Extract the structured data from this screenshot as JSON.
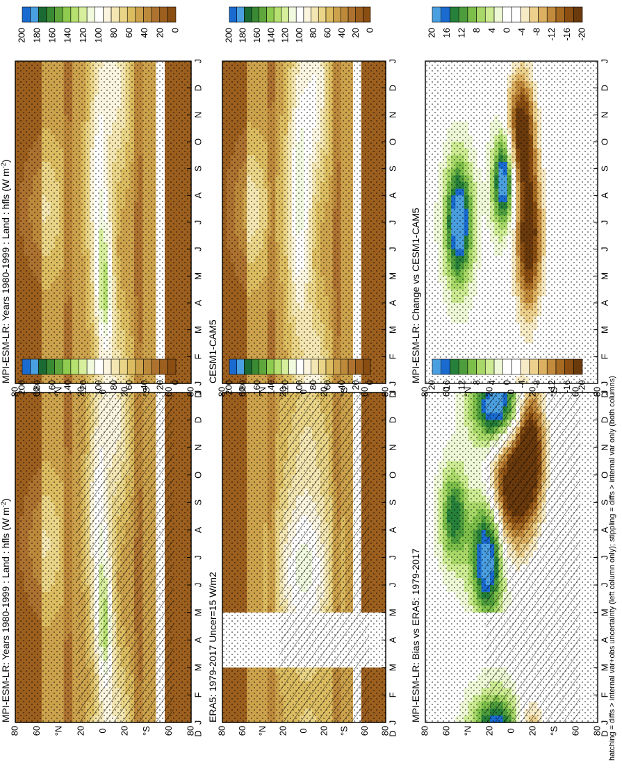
{
  "figure": {
    "footnote": "hatching = diffs > internal var+obs uncertainty (left column only); stippling = diffs > internal var only (both columns)"
  },
  "palettes": {
    "flux": [
      "#8a4e12",
      "#9c5f1e",
      "#ad7230",
      "#bd8a3c",
      "#cda24c",
      "#dcbc60",
      "#e9d487",
      "#f3e6b2",
      "#fbf5e0",
      "#ffffff",
      "#f1f9de",
      "#d7ef9c",
      "#b6e06f",
      "#8ecb4e",
      "#5fa73c",
      "#3a8a33",
      "#1b6a34",
      "#4a9fe0",
      "#1a6bd0"
    ],
    "diff": [
      "#6b3a0c",
      "#8a4e12",
      "#a66a22",
      "#c28a3c",
      "#dbb060",
      "#ecd08c",
      "#f7ebc6",
      "#ffffff",
      "#ffffff",
      "#eef8d6",
      "#cdeb92",
      "#a8d868",
      "#7dbf4a",
      "#4e9d3c",
      "#26803a",
      "#1a6bd0",
      "#4a9fe0"
    ]
  },
  "colorbars": {
    "flux": {
      "ticks": [
        "0",
        "20",
        "40",
        "60",
        "80",
        "100",
        "120",
        "140",
        "160",
        "180",
        "200"
      ]
    },
    "diff": {
      "ticks": [
        "-20",
        "-16",
        "-12",
        "-8",
        "-4",
        "0",
        "4",
        "8",
        "12",
        "16",
        "20"
      ]
    }
  },
  "axes": {
    "month_ticks": [
      "J",
      "F",
      "M",
      "A",
      "M",
      "J",
      "J",
      "A",
      "S",
      "O",
      "N",
      "D",
      "J",
      "D"
    ],
    "lat_ticks": [
      "80",
      "60",
      "°N",
      "20",
      "0",
      "20",
      "°S",
      "60",
      "80"
    ]
  },
  "chart_data": [
    {
      "type": "heatmap",
      "title": "MPI-ESM-LR: Years 1980-1999 : Land : hfls (W m",
      "title_superscript": "-2",
      "title_suffix": ")",
      "x": "month",
      "y": "latitude",
      "ylim": [
        -90,
        90
      ],
      "colorbar": "flux",
      "clim": [
        0,
        200
      ],
      "hatching": true,
      "stippling": true,
      "features": [
        {
          "month": 6.5,
          "lat": 60,
          "value": 75,
          "sx": 1.8,
          "sy": 16
        },
        {
          "month": 7.5,
          "lat": 5,
          "value": 100,
          "sx": 3.5,
          "sy": 8
        },
        {
          "month": 3.5,
          "lat": -2,
          "value": 110,
          "sx": 1.8,
          "sy": 6
        },
        {
          "month": 11,
          "lat": -15,
          "value": 85,
          "sx": 2.5,
          "sy": 10
        }
      ]
    },
    {
      "type": "heatmap",
      "title": "MPI-ESM-LR: Years 1980-1999 : Land : hfls (W m",
      "title_superscript": "-2",
      "title_suffix": ")",
      "x": "month",
      "y": "latitude",
      "ylim": [
        -90,
        90
      ],
      "colorbar": "flux",
      "clim": [
        0,
        200
      ],
      "hatching": false,
      "stippling": true,
      "features": [
        {
          "month": 6.5,
          "lat": 60,
          "value": 75,
          "sx": 1.8,
          "sy": 16
        },
        {
          "month": 7.5,
          "lat": 5,
          "value": 100,
          "sx": 3.5,
          "sy": 8
        },
        {
          "month": 3.5,
          "lat": -2,
          "value": 110,
          "sx": 1.8,
          "sy": 6
        },
        {
          "month": 11,
          "lat": -15,
          "value": 85,
          "sx": 2.5,
          "sy": 10
        }
      ]
    },
    {
      "type": "heatmap",
      "title": "ERA5: 1979-2017 Uncer=15 W/m2",
      "x": "month",
      "y": "latitude",
      "ylim": [
        -90,
        90
      ],
      "colorbar": "flux",
      "clim": [
        0,
        200
      ],
      "hatching": true,
      "stippling": true,
      "missing_months": [
        [
          2,
          4
        ]
      ],
      "features": [
        {
          "month": 5.5,
          "lat": 0,
          "value": 110,
          "sx": 2.2,
          "sy": 22
        },
        {
          "month": 10.5,
          "lat": -5,
          "value": 70,
          "sx": 1.8,
          "sy": 20
        }
      ]
    },
    {
      "type": "heatmap",
      "title": "CESM1-CAM5",
      "x": "month",
      "y": "latitude",
      "ylim": [
        -90,
        90
      ],
      "colorbar": "flux",
      "clim": [
        0,
        200
      ],
      "hatching": false,
      "stippling": true,
      "features": [
        {
          "month": 6.5,
          "lat": 60,
          "value": 80,
          "sx": 1.8,
          "sy": 16
        },
        {
          "month": 7,
          "lat": 5,
          "value": 110,
          "sx": 4,
          "sy": 10
        },
        {
          "month": 11,
          "lat": -15,
          "value": 90,
          "sx": 2.5,
          "sy": 10
        }
      ]
    },
    {
      "type": "heatmap",
      "title": "MPI-ESM-LR: Bias vs ERA5: 1979-2017",
      "x": "month",
      "y": "latitude",
      "ylim": [
        -90,
        90
      ],
      "colorbar": "diff",
      "clim": [
        -20,
        20
      ],
      "hatching": true,
      "stippling": true,
      "missing_months": [
        [
          2,
          4
        ]
      ],
      "features": [
        {
          "month": 6,
          "lat": 25,
          "value": 22,
          "sx": 1.5,
          "sy": 12
        },
        {
          "month": 11.5,
          "lat": 15,
          "value": 22,
          "sx": 1,
          "sy": 18
        },
        {
          "month": 8.5,
          "lat": 0,
          "value": -22,
          "sx": 1.6,
          "sy": 15
        },
        {
          "month": 10,
          "lat": -20,
          "value": -22,
          "sx": 1.6,
          "sy": 10
        },
        {
          "month": 7.5,
          "lat": 60,
          "value": 15,
          "sx": 1.2,
          "sy": 10
        }
      ]
    },
    {
      "type": "heatmap",
      "title": "MPI-ESM-LR: Change vs CESM1-CAM5",
      "x": "month",
      "y": "latitude",
      "ylim": [
        -90,
        90
      ],
      "colorbar": "diff",
      "clim": [
        -20,
        20
      ],
      "hatching": false,
      "stippling": true,
      "features": [
        {
          "month": 6,
          "lat": 55,
          "value": 22,
          "sx": 1.6,
          "sy": 10
        },
        {
          "month": 7.5,
          "lat": 8,
          "value": 22,
          "sx": 1.2,
          "sy": 8
        },
        {
          "month": 5.5,
          "lat": -18,
          "value": -22,
          "sx": 2,
          "sy": 10
        },
        {
          "month": 9.5,
          "lat": -10,
          "value": -20,
          "sx": 1.5,
          "sy": 10
        }
      ]
    }
  ]
}
